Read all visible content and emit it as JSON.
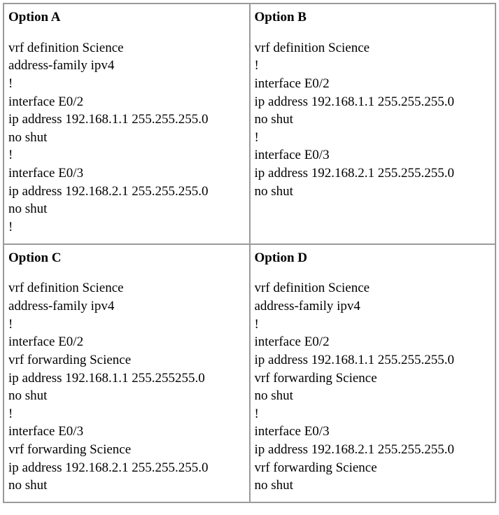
{
  "options": [
    {
      "title": "Option A",
      "lines": [
        "vrf definition Science",
        "address-family ipv4",
        "!",
        "interface E0/2",
        "ip address 192.168.1.1 255.255.255.0",
        "no shut",
        "!",
        "interface E0/3",
        "ip address 192.168.2.1 255.255.255.0",
        "no shut",
        "!"
      ]
    },
    {
      "title": "Option B",
      "lines": [
        "vrf definition Science",
        "!",
        "interface E0/2",
        "ip address 192.168.1.1 255.255.255.0",
        "no shut",
        "!",
        "interface E0/3",
        "ip address 192.168.2.1 255.255.255.0",
        "no shut"
      ]
    },
    {
      "title": "Option C",
      "lines": [
        "vrf definition Science",
        "address-family ipv4",
        "!",
        "interface E0/2",
        "vrf forwarding Science",
        "ip address 192.168.1.1 255.255255.0",
        "no shut",
        "!",
        "interface E0/3",
        "vrf forwarding Science",
        "ip address 192.168.2.1 255.255.255.0",
        "no shut"
      ]
    },
    {
      "title": "Option D",
      "lines": [
        "vrf definition Science",
        "address-family ipv4",
        "!",
        "interface E0/2",
        "ip address 192.168.1.1 255.255.255.0",
        "vrf forwarding Science",
        "no shut",
        "!",
        "interface E0/3",
        "ip address 192.168.2.1 255.255.255.0",
        "vrf forwarding Science",
        "no shut"
      ]
    }
  ],
  "style": {
    "font_family": "Times New Roman",
    "font_size_pt": 14,
    "title_font_weight": "bold",
    "text_color": "#000000",
    "background_color": "#ffffff",
    "border_color": "#9a9a9a",
    "columns": 2,
    "rows": 2
  }
}
